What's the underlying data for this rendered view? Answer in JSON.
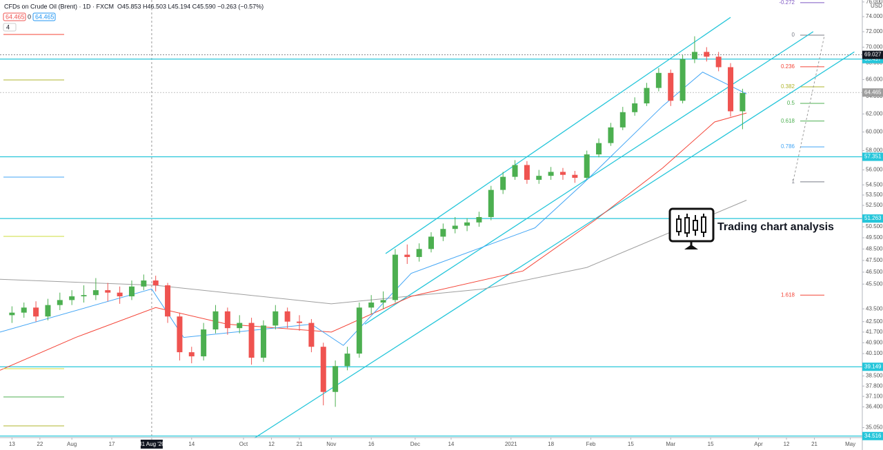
{
  "chart_data": {
    "type": "candlestick",
    "title": "CFDs on Crude Oil (Brent) · 1D · FXCM",
    "ohlc_text": "O45.853 H46.503 L45.194 C45.590 −0.263 (−0.57%)",
    "bid": "64.465",
    "spread": "0",
    "ask": "64.465",
    "indicators_count": "4",
    "currency": "USD",
    "annotation": "Trading chart analysis",
    "log_scale": true,
    "up_color": "#4caf50",
    "down_color": "#ef5350",
    "xlim": [
      -3,
      213
    ],
    "ylim": [
      34.42,
      76.27
    ],
    "x": [
      0,
      3,
      6,
      9,
      12,
      15,
      18,
      21,
      24,
      27,
      30,
      33,
      36,
      39,
      42,
      45,
      48,
      51,
      54,
      57,
      60,
      63,
      66,
      69,
      72,
      75,
      78,
      81,
      84,
      87,
      90,
      93,
      96,
      99,
      102,
      105,
      108,
      111,
      114,
      117,
      120,
      123,
      126,
      129,
      132,
      135,
      138,
      141,
      144,
      147,
      150,
      153,
      156,
      159,
      162,
      165,
      168,
      171,
      174,
      177,
      180,
      183
    ],
    "open": [
      43.0,
      43.2,
      43.6,
      42.9,
      43.8,
      44.2,
      44.5,
      44.6,
      45.0,
      44.8,
      44.5,
      45.3,
      45.8,
      45.4,
      42.9,
      40.2,
      39.9,
      41.9,
      43.3,
      42.0,
      42.4,
      39.8,
      42.2,
      43.3,
      42.5,
      42.4,
      40.6,
      37.4,
      39.2,
      40.1,
      43.6,
      44.0,
      44.2,
      48.0,
      47.8,
      48.5,
      49.6,
      50.3,
      50.6,
      50.9,
      51.4,
      54.0,
      55.3,
      56.5,
      55.0,
      55.4,
      55.8,
      55.5,
      55.2,
      57.6,
      58.8,
      60.5,
      62.2,
      63.2,
      65.0,
      66.8,
      63.5,
      68.5,
      69.4,
      68.8,
      67.5,
      62.3
    ],
    "high": [
      43.7,
      44.0,
      44.1,
      44.3,
      44.8,
      45.0,
      45.4,
      46.0,
      45.6,
      45.3,
      45.8,
      46.3,
      46.2,
      45.6,
      43.2,
      40.6,
      42.4,
      43.8,
      43.6,
      43.0,
      42.8,
      42.6,
      43.8,
      43.6,
      43.0,
      42.7,
      40.9,
      39.6,
      40.6,
      44.0,
      44.6,
      44.9,
      48.5,
      48.9,
      49.0,
      50.0,
      50.8,
      51.4,
      51.3,
      51.9,
      54.4,
      55.8,
      57.0,
      56.9,
      56.0,
      56.3,
      56.2,
      55.9,
      58.0,
      59.3,
      61.0,
      62.8,
      63.9,
      65.6,
      67.4,
      67.2,
      69.0,
      71.4,
      70.0,
      69.4,
      68.0,
      64.9
    ],
    "low": [
      42.4,
      42.8,
      42.5,
      42.6,
      43.4,
      43.8,
      44.0,
      44.2,
      44.1,
      43.9,
      44.2,
      45.0,
      44.9,
      42.4,
      39.6,
      39.4,
      39.6,
      41.6,
      41.5,
      41.6,
      39.3,
      39.5,
      41.9,
      42.0,
      41.8,
      40.2,
      36.5,
      36.4,
      38.9,
      39.8,
      43.1,
      43.5,
      44.0,
      47.2,
      47.4,
      48.2,
      49.2,
      49.9,
      50.1,
      50.5,
      51.1,
      53.6,
      55.0,
      54.6,
      54.6,
      55.0,
      55.0,
      54.7,
      55.0,
      57.3,
      58.5,
      60.2,
      61.8,
      62.9,
      64.6,
      62.9,
      63.2,
      68.0,
      68.2,
      67.0,
      61.7,
      60.3
    ],
    "close": [
      43.2,
      43.6,
      42.9,
      43.8,
      44.2,
      44.5,
      44.6,
      45.0,
      44.8,
      44.5,
      45.3,
      45.8,
      45.4,
      42.9,
      40.2,
      39.9,
      41.9,
      43.3,
      42.0,
      42.4,
      39.8,
      42.2,
      43.3,
      42.5,
      42.4,
      40.6,
      37.4,
      39.2,
      40.1,
      43.6,
      44.0,
      44.2,
      48.0,
      47.8,
      48.5,
      49.6,
      50.3,
      50.6,
      50.9,
      51.4,
      54.0,
      55.3,
      56.5,
      55.0,
      55.4,
      55.8,
      55.5,
      55.2,
      57.6,
      58.8,
      60.5,
      62.2,
      63.2,
      65.0,
      66.8,
      63.5,
      68.5,
      69.4,
      68.8,
      67.5,
      62.3,
      64.4
    ],
    "moving_averages": [
      {
        "color": "#9e9e9e",
        "x": [
          -3,
          36,
          80,
          118,
          144,
          161,
          184
        ],
        "values": [
          45.9,
          45.4,
          43.9,
          45.1,
          46.9,
          49.4,
          53.0
        ]
      },
      {
        "color": "#f44336",
        "x": [
          -3,
          16,
          36,
          54,
          80,
          100,
          128,
          146,
          163,
          176,
          184
        ],
        "values": [
          38.9,
          41.3,
          43.6,
          42.3,
          41.7,
          44.5,
          46.6,
          51.1,
          56.2,
          61.1,
          62.1
        ]
      },
      {
        "color": "#42a5f5",
        "x": [
          -3,
          35,
          43,
          75,
          83,
          100,
          131,
          143,
          163,
          173,
          184
        ],
        "values": [
          41.7,
          45.1,
          41.3,
          42.3,
          40.7,
          46.4,
          50.4,
          54.6,
          62.9,
          66.9,
          64.3
        ]
      }
    ],
    "channels": [
      {
        "color": "#26c6da",
        "x": [
          93.6,
          180
        ],
        "values": [
          48.1,
          73.9
        ]
      },
      {
        "color": "#26c6da",
        "x": [
          88.4,
          200.7
        ],
        "values": [
          42.3,
          72.0
        ]
      },
      {
        "color": "#26c6da",
        "x": [
          60.8,
          211
        ],
        "values": [
          34.4,
          69.4
        ]
      }
    ],
    "levels": [
      {
        "value": 68.497,
        "label": "68.497"
      },
      {
        "value": 57.351,
        "label": "57.351"
      },
      {
        "value": 51.263,
        "label": "51.263"
      },
      {
        "value": 39.149,
        "label": "39.149"
      },
      {
        "value": 34.516,
        "label": "34.516"
      }
    ],
    "level_color": "#26c6da",
    "price_tags": [
      {
        "value": 69.027,
        "label": "69.027",
        "color": "#131722"
      },
      {
        "value": 64.465,
        "label": "64.465",
        "color": "#9e9e9e"
      }
    ],
    "fib": [
      {
        "value": 75.9,
        "label": "-0.272",
        "color": "#7e57c2"
      },
      {
        "value": 71.55,
        "label": "0",
        "color": "#787b86"
      },
      {
        "value": 67.55,
        "label": "0.236",
        "color": "#f44336"
      },
      {
        "value": 65.13,
        "label": "0.382",
        "color": "#afb42b"
      },
      {
        "value": 63.2,
        "label": "0.5",
        "color": "#4caf50"
      },
      {
        "value": 61.2,
        "label": "0.618",
        "color": "#4caf50"
      },
      {
        "value": 58.4,
        "label": "0.786",
        "color": "#42a5f5"
      },
      {
        "value": 54.8,
        "label": "1",
        "color": "#787b86"
      },
      {
        "value": 44.6,
        "label": "1.618",
        "color": "#f44336"
      }
    ],
    "crosshair": 35,
    "yticks": [
      {
        "value": 76,
        "label": "76.000"
      },
      {
        "value": 74,
        "label": "74.000"
      },
      {
        "value": 72,
        "label": "72.000"
      },
      {
        "value": 70,
        "label": "70.000"
      },
      {
        "value": 68,
        "label": "68.000"
      },
      {
        "value": 66,
        "label": "66.000"
      },
      {
        "value": 64,
        "label": "64.000"
      },
      {
        "value": 62,
        "label": "62.000"
      },
      {
        "value": 60,
        "label": "60.000"
      },
      {
        "value": 58,
        "label": "58.000"
      },
      {
        "value": 56,
        "label": "56.000"
      },
      {
        "value": 54.5,
        "label": "54.500"
      },
      {
        "value": 53.5,
        "label": "53.500"
      },
      {
        "value": 52.5,
        "label": "52.500"
      },
      {
        "value": 50.5,
        "label": "50.500"
      },
      {
        "value": 49.5,
        "label": "49.500"
      },
      {
        "value": 48.5,
        "label": "48.500"
      },
      {
        "value": 47.5,
        "label": "47.500"
      },
      {
        "value": 46.5,
        "label": "46.500"
      },
      {
        "value": 45.5,
        "label": "45.500"
      },
      {
        "value": 43.5,
        "label": "43.500"
      },
      {
        "value": 42.5,
        "label": "42.500"
      },
      {
        "value": 41.7,
        "label": "41.700"
      },
      {
        "value": 40.9,
        "label": "40.900"
      },
      {
        "value": 40.1,
        "label": "40.100"
      },
      {
        "value": 38.5,
        "label": "38.500"
      },
      {
        "value": 37.8,
        "label": "37.800"
      },
      {
        "value": 37.1,
        "label": "37.100"
      },
      {
        "value": 36.4,
        "label": "36.400"
      },
      {
        "value": 35.05,
        "label": "35.050"
      }
    ],
    "xticks": [
      {
        "value": 0,
        "label": "13"
      },
      {
        "value": 7,
        "label": "22"
      },
      {
        "value": 15,
        "label": "Aug"
      },
      {
        "value": 25,
        "label": "17"
      },
      {
        "value": 35,
        "label": "31 Aug '20"
      },
      {
        "value": 45,
        "label": "14"
      },
      {
        "value": 58,
        "label": "Oct"
      },
      {
        "value": 65,
        "label": "12"
      },
      {
        "value": 72,
        "label": "21"
      },
      {
        "value": 80,
        "label": "Nov"
      },
      {
        "value": 90,
        "label": "16"
      },
      {
        "value": 101,
        "label": "Dec"
      },
      {
        "value": 110,
        "label": "14"
      },
      {
        "value": 125,
        "label": "2021"
      },
      {
        "value": 135,
        "label": "18"
      },
      {
        "value": 145,
        "label": "Feb"
      },
      {
        "value": 155,
        "label": "15"
      },
      {
        "value": 165,
        "label": "Mar"
      },
      {
        "value": 175,
        "label": "15"
      },
      {
        "value": 187,
        "label": "Apr"
      },
      {
        "value": 194,
        "label": "12"
      },
      {
        "value": 201,
        "label": "21"
      },
      {
        "value": 210,
        "label": "May"
      }
    ]
  }
}
